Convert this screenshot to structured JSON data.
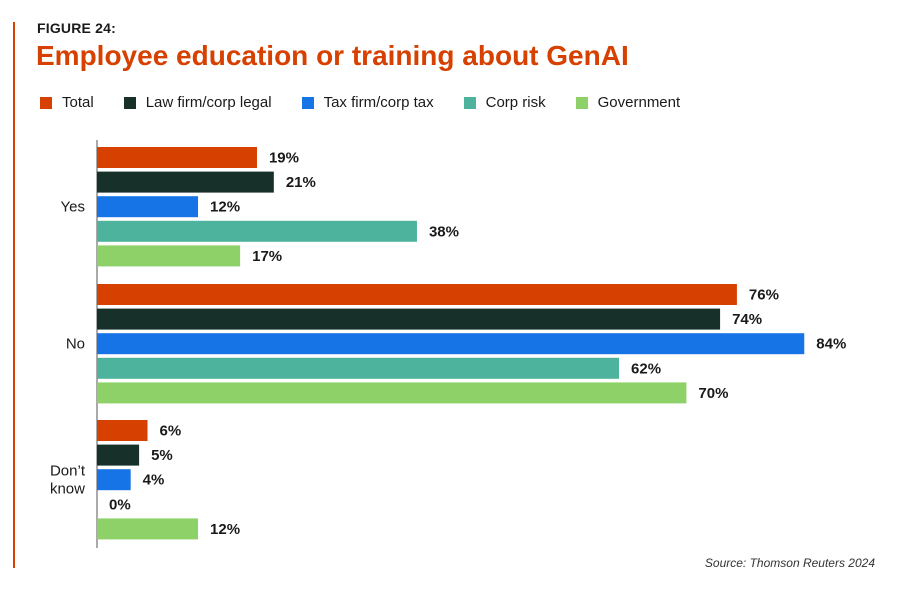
{
  "figure_label": "FIGURE 24:",
  "source": "Source: Thomson Reuters 2024",
  "chart_data": {
    "type": "bar",
    "orientation": "horizontal",
    "title": "Employee education or training about GenAI",
    "categories": [
      "Yes",
      "No",
      "Don’t know"
    ],
    "category_lines": [
      [
        "Yes"
      ],
      [
        "No"
      ],
      [
        "Don’t",
        "know"
      ]
    ],
    "series": [
      {
        "name": "Total",
        "color": "#d64000",
        "values": [
          19,
          76,
          6
        ]
      },
      {
        "name": "Law firm/corp legal",
        "color": "#17312a",
        "values": [
          21,
          74,
          5
        ]
      },
      {
        "name": "Tax firm/corp tax",
        "color": "#1774e6",
        "values": [
          12,
          84,
          4
        ]
      },
      {
        "name": "Corp risk",
        "color": "#4db39c",
        "values": [
          38,
          62,
          0
        ]
      },
      {
        "name": "Government",
        "color": "#8fd169",
        "values": [
          17,
          70,
          12
        ]
      }
    ],
    "value_suffix": "%",
    "xlim": [
      0,
      100
    ],
    "grid": false,
    "legend": "top"
  }
}
